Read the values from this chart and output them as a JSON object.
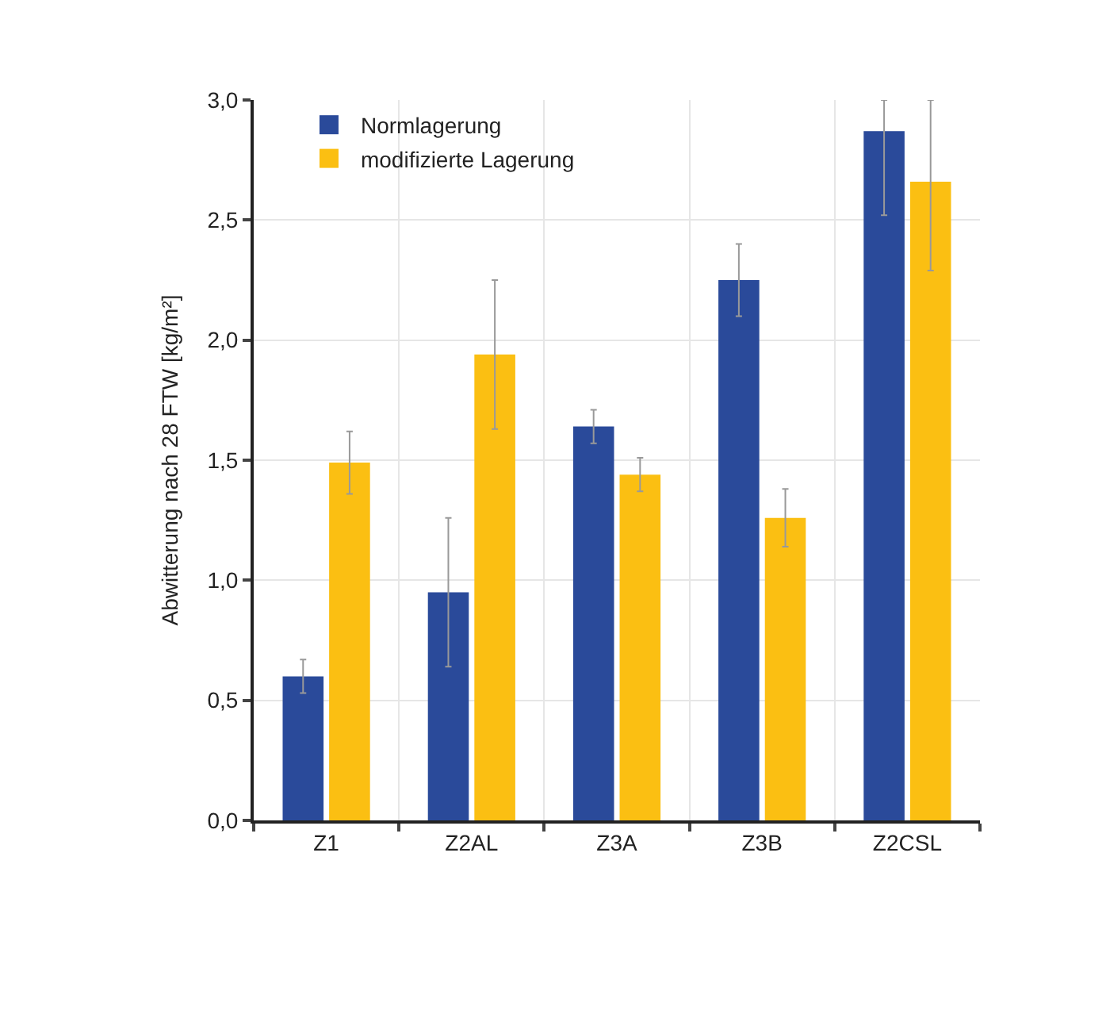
{
  "chart_data": {
    "type": "bar",
    "ylabel": "Abwitterung nach 28 FTW [kg/m²]",
    "categories": [
      "Z1",
      "Z2AL",
      "Z3A",
      "Z3B",
      "Z2CSL"
    ],
    "series": [
      {
        "name": "Normlagerung",
        "color": "#2a4a9a",
        "values": [
          0.6,
          0.95,
          1.64,
          2.25,
          2.87
        ],
        "errors": [
          0.07,
          0.31,
          0.07,
          0.15,
          [
            2.52,
            3.0
          ]
        ]
      },
      {
        "name": "modifizierte Lagerung",
        "color": "#fbbf12",
        "values": [
          1.49,
          1.94,
          1.44,
          1.26,
          2.66
        ],
        "errors": [
          0.13,
          0.31,
          0.07,
          0.12,
          [
            2.29,
            3.0
          ]
        ]
      }
    ],
    "ylim": [
      0,
      3.0
    ],
    "yticks": [
      {
        "value": 0,
        "label": "0,0"
      },
      {
        "value": 0.5,
        "label": "0,5"
      },
      {
        "value": 1.0,
        "label": "1,0"
      },
      {
        "value": 1.5,
        "label": "1,5"
      },
      {
        "value": 2.0,
        "label": "2,0"
      },
      {
        "value": 2.5,
        "label": "2,5"
      },
      {
        "value": 3.0,
        "label": "3,0"
      }
    ],
    "grid": true,
    "legend": "top left"
  }
}
